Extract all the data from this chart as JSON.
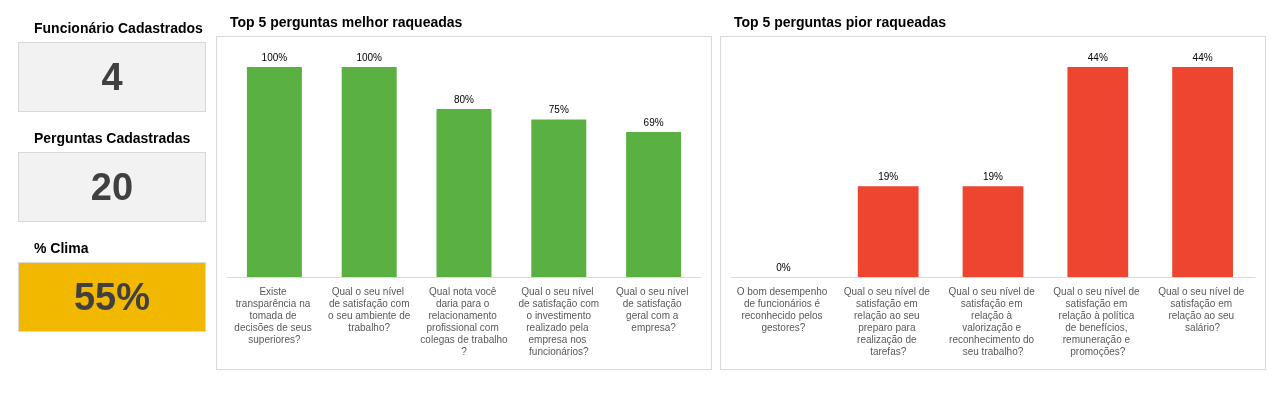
{
  "chart_data": [
    {
      "type": "other",
      "categories": [
        "Funcionário Cadastrados",
        "Perguntas Cadastradas",
        "% Clima"
      ],
      "values": [
        4,
        20,
        55
      ],
      "value_labels": [
        "4",
        "20",
        "55%"
      ],
      "colors": [
        "#f2f2f2",
        "#f2f2f2",
        "#f2b800"
      ]
    },
    {
      "type": "bar",
      "title": "Top 5 perguntas melhor raqueadas",
      "categories": [
        "Existe transparência na tomada de decisões de seus superiores?",
        "Qual o seu nível de satisfação com o seu ambiente de trabalho?",
        "Qual nota você daria para o relacionamento profissional com colegas de trabalho?",
        "Qual o seu nível de satisfação com o investimento realizado pela empresa nos funcionários?",
        "Qual o seu nível de satisfação geral com a empresa?"
      ],
      "values": [
        100,
        100,
        80,
        75,
        69
      ],
      "value_labels": [
        "100%",
        "100%",
        "80%",
        "75%",
        "69%"
      ],
      "color": "#5ab142"
    },
    {
      "type": "bar",
      "title": "Top 5 perguntas pior raqueadas",
      "categories": [
        "O bom desempenho de funcionários é reconhecido pelos gestores?",
        "Qual o seu nível de satisfação em relação ao seu preparo para realização de tarefas?",
        "Qual o seu nível de satisfação em relação à valorização e reconhecimento do seu trabalho?",
        "Qual o seu nível de satisfação em relação à política de benefícios, remuneração e promoções?",
        "Qual o seu nível de satisfação em relação ao seu salário?"
      ],
      "values": [
        0,
        19,
        19,
        44,
        44
      ],
      "value_labels": [
        "0%",
        "19%",
        "19%",
        "44%",
        "44%"
      ],
      "color": "#ee4530"
    }
  ]
}
